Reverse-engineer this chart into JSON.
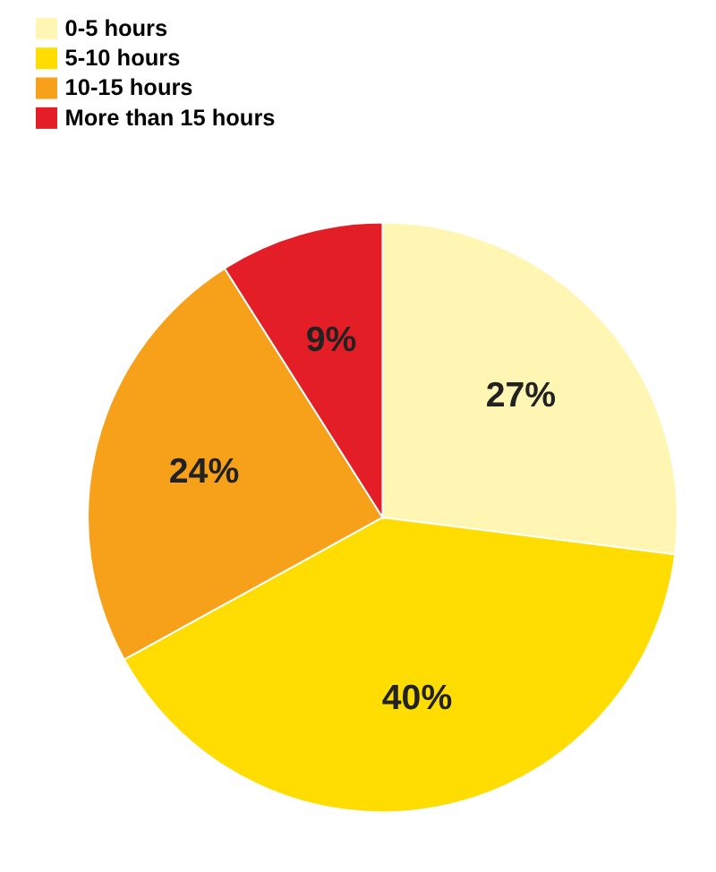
{
  "chart_data": {
    "type": "pie",
    "categories": [
      "0-5 hours",
      "5-10 hours",
      "10-15 hours",
      "More than 15 hours"
    ],
    "values": [
      27,
      40,
      24,
      9
    ],
    "colors": [
      "#fff6b4",
      "#ffdd00",
      "#f7a11a",
      "#e41e26"
    ],
    "value_labels": [
      "27%",
      "40%",
      "24%",
      "9%"
    ],
    "legend": "top left"
  }
}
